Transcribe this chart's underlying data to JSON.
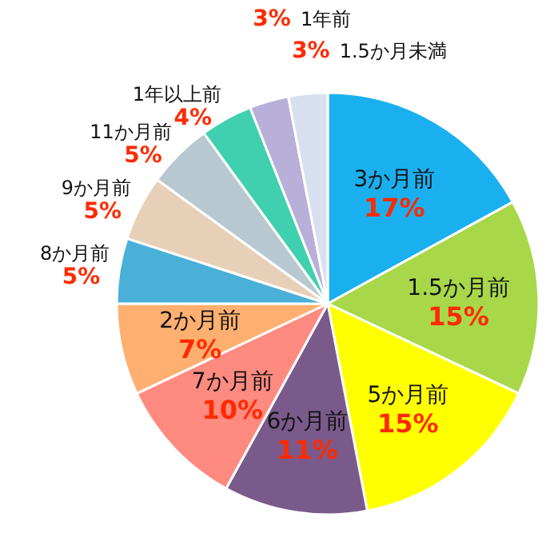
{
  "chart_data": {
    "type": "pie",
    "categories": [
      "3か月前",
      "1.5か月前",
      "5か月前",
      "6か月前",
      "7か月前",
      "2か月前",
      "8か月前",
      "9か月前",
      "11か月前",
      "1年以上前",
      "1年前",
      "1.5か月未満"
    ],
    "values": [
      17,
      15,
      15,
      11,
      10,
      7,
      5,
      5,
      5,
      4,
      3,
      3
    ],
    "value_labels": [
      "17%",
      "15%",
      "15%",
      "11%",
      "10%",
      "7%",
      "5%",
      "5%",
      "5%",
      "4%",
      "3%",
      "3%"
    ],
    "colors": [
      "#1ab0ef",
      "#a8d84a",
      "#ffff00",
      "#7a5a8a",
      "#ff8a80",
      "#ffb070",
      "#4ab0d8",
      "#e8d0b8",
      "#b8c8d0",
      "#40d0b0",
      "#b8b0d8",
      "#d8e0f0"
    ]
  }
}
